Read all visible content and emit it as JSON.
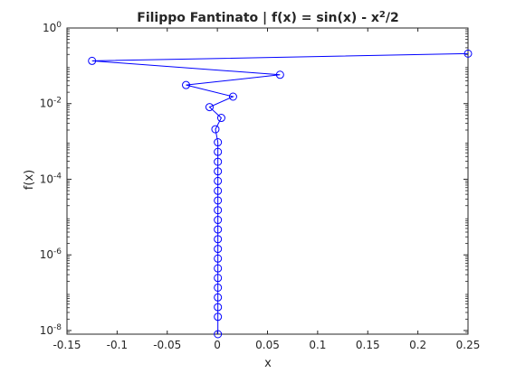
{
  "chart_data": {
    "type": "line",
    "title": "Filippo Fantinato | f(x) = sin(x) - x²/2",
    "title_parts": {
      "main": "Filippo Fantinato | f(x) = sin(x) - x",
      "sup": "2",
      "tail": "/2"
    },
    "xlabel": "x",
    "ylabel": "f(x)",
    "xlim": [
      -0.15,
      0.25
    ],
    "ylim": [
      8e-09,
      1
    ],
    "yscale": "log",
    "grid": false,
    "x_ticks": [
      {
        "value": -0.15,
        "label": "-0.15"
      },
      {
        "value": -0.1,
        "label": "-0.1"
      },
      {
        "value": -0.05,
        "label": "-0.05"
      },
      {
        "value": 0,
        "label": "0"
      },
      {
        "value": 0.05,
        "label": "0.05"
      },
      {
        "value": 0.1,
        "label": "0.1"
      },
      {
        "value": 0.15,
        "label": "0.15"
      },
      {
        "value": 0.2,
        "label": "0.2"
      },
      {
        "value": 0.25,
        "label": "0.25"
      }
    ],
    "y_ticks": [
      {
        "value": 1e-08,
        "base": "10",
        "exp": "-8"
      },
      {
        "value": 1e-06,
        "base": "10",
        "exp": "-6"
      },
      {
        "value": 0.0001,
        "base": "10",
        "exp": "-4"
      },
      {
        "value": 0.01,
        "base": "10",
        "exp": "-2"
      },
      {
        "value": 1,
        "base": "10",
        "exp": "0"
      }
    ],
    "line_color": "#0000ff",
    "marker": "circle-open",
    "series": [
      {
        "x": [
          0.25,
          -0.125,
          0.0625,
          -0.03125,
          0.015625,
          -0.0078125,
          0.00390625,
          -0.001953125,
          0.0005,
          0.0005,
          0.0005,
          0.0005,
          0.0005,
          0.0005,
          0.0005,
          0.0005,
          0.0005,
          0.0005,
          0.0005,
          0.0005,
          0.0005,
          0.0005,
          0.0005,
          0.0005,
          0.0005,
          0.0005,
          0.0005,
          0.0005
        ],
        "y": [
          0.21,
          0.135,
          0.058,
          0.031,
          0.0153,
          0.0081,
          0.0042,
          0.0021,
          0.00095,
          0.00053,
          0.00029,
          0.000162,
          9e-05,
          4.95e-05,
          2.75e-05,
          1.52e-05,
          8.4e-06,
          4.7e-06,
          2.6e-06,
          1.44e-06,
          8e-07,
          4.4e-07,
          2.45e-07,
          1.36e-07,
          7.5e-08,
          4.15e-08,
          2.3e-08,
          8e-09
        ]
      }
    ]
  }
}
